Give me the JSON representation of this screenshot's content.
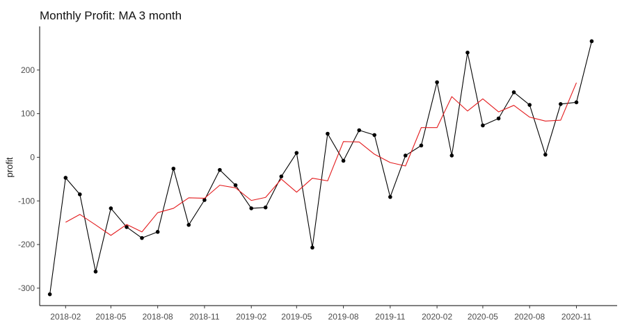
{
  "chart_data": {
    "type": "line",
    "title": "Monthly Profit: MA 3 month",
    "xlabel": "",
    "ylabel": "profit",
    "x_tick_labels": [
      "2018-02",
      "2018-05",
      "2018-08",
      "2018-11",
      "2019-02",
      "2019-05",
      "2019-08",
      "2019-11",
      "2020-02",
      "2020-05",
      "2020-08",
      "2020-11"
    ],
    "x_tick_months": [
      "2018-02",
      "2018-05",
      "2018-08",
      "2018-11",
      "2019-02",
      "2019-05",
      "2019-08",
      "2019-11",
      "2020-02",
      "2020-05",
      "2020-08",
      "2020-11"
    ],
    "y_ticks": [
      -300,
      -200,
      -100,
      0,
      100,
      200
    ],
    "xlim": [
      "2017-12-12",
      "2021-01-20"
    ],
    "ylim": [
      -340,
      300
    ],
    "grid": false,
    "series": [
      {
        "color": "#000000",
        "markers": true,
        "points": [
          {
            "x": "2018-01",
            "y": -314
          },
          {
            "x": "2018-02",
            "y": -47
          },
          {
            "x": "2018-03",
            "y": -85
          },
          {
            "x": "2018-04",
            "y": -262
          },
          {
            "x": "2018-05",
            "y": -117
          },
          {
            "x": "2018-06",
            "y": -160
          },
          {
            "x": "2018-07",
            "y": -185
          },
          {
            "x": "2018-08",
            "y": -171
          },
          {
            "x": "2018-09",
            "y": -26
          },
          {
            "x": "2018-10",
            "y": -155
          },
          {
            "x": "2018-11",
            "y": -98
          },
          {
            "x": "2018-12",
            "y": -29
          },
          {
            "x": "2019-01",
            "y": -64
          },
          {
            "x": "2019-02",
            "y": -117
          },
          {
            "x": "2019-03",
            "y": -115
          },
          {
            "x": "2019-04",
            "y": -44
          },
          {
            "x": "2019-05",
            "y": 10
          },
          {
            "x": "2019-06",
            "y": -207
          },
          {
            "x": "2019-07",
            "y": 54
          },
          {
            "x": "2019-08",
            "y": -8
          },
          {
            "x": "2019-09",
            "y": 62
          },
          {
            "x": "2019-10",
            "y": 51
          },
          {
            "x": "2019-11",
            "y": -91
          },
          {
            "x": "2019-12",
            "y": 4
          },
          {
            "x": "2020-01",
            "y": 27
          },
          {
            "x": "2020-02",
            "y": 172
          },
          {
            "x": "2020-03",
            "y": 4
          },
          {
            "x": "2020-04",
            "y": 240
          },
          {
            "x": "2020-05",
            "y": 73
          },
          {
            "x": "2020-06",
            "y": 89
          },
          {
            "x": "2020-07",
            "y": 149
          },
          {
            "x": "2020-08",
            "y": 120
          },
          {
            "x": "2020-09",
            "y": 6
          },
          {
            "x": "2020-10",
            "y": 122
          },
          {
            "x": "2020-11",
            "y": 126
          },
          {
            "x": "2020-12",
            "y": 266
          }
        ]
      },
      {
        "color": "#e31a1c",
        "markers": false,
        "points": [
          {
            "x": "2018-02",
            "y": -149
          },
          {
            "x": "2018-03",
            "y": -131
          },
          {
            "x": "2018-04",
            "y": -155
          },
          {
            "x": "2018-05",
            "y": -179
          },
          {
            "x": "2018-06",
            "y": -154
          },
          {
            "x": "2018-07",
            "y": -171
          },
          {
            "x": "2018-08",
            "y": -127
          },
          {
            "x": "2018-09",
            "y": -117
          },
          {
            "x": "2018-10",
            "y": -93
          },
          {
            "x": "2018-11",
            "y": -94
          },
          {
            "x": "2018-12",
            "y": -64
          },
          {
            "x": "2019-01",
            "y": -70
          },
          {
            "x": "2019-02",
            "y": -99
          },
          {
            "x": "2019-03",
            "y": -92
          },
          {
            "x": "2019-04",
            "y": -50
          },
          {
            "x": "2019-05",
            "y": -80
          },
          {
            "x": "2019-06",
            "y": -48
          },
          {
            "x": "2019-07",
            "y": -54
          },
          {
            "x": "2019-08",
            "y": 36
          },
          {
            "x": "2019-09",
            "y": 35
          },
          {
            "x": "2019-10",
            "y": 7
          },
          {
            "x": "2019-11",
            "y": -12
          },
          {
            "x": "2019-12",
            "y": -20
          },
          {
            "x": "2020-01",
            "y": 68
          },
          {
            "x": "2020-02",
            "y": 68
          },
          {
            "x": "2020-03",
            "y": 139
          },
          {
            "x": "2020-04",
            "y": 106
          },
          {
            "x": "2020-05",
            "y": 134
          },
          {
            "x": "2020-06",
            "y": 104
          },
          {
            "x": "2020-07",
            "y": 119
          },
          {
            "x": "2020-08",
            "y": 92
          },
          {
            "x": "2020-09",
            "y": 83
          },
          {
            "x": "2020-10",
            "y": 85
          },
          {
            "x": "2020-11",
            "y": 171
          }
        ]
      }
    ]
  }
}
